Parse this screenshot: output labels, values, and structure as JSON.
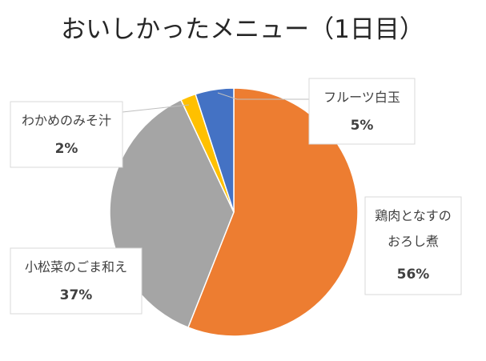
{
  "chart_data": {
    "type": "pie",
    "title": "おいしかったメニュー（1日目）",
    "categories": [
      "鶏肉となすのおろし煮",
      "小松菜のごま和え",
      "わかめのみそ汁",
      "フルーツ白玉"
    ],
    "values": [
      56,
      37,
      2,
      5
    ],
    "value_labels": [
      "56%",
      "37%",
      "2%",
      "5%"
    ],
    "colors": [
      "#ed7d31",
      "#a5a5a5",
      "#ffc000",
      "#4472c4"
    ],
    "start_angle_deg": 0,
    "direction": "clockwise",
    "legend": "none",
    "labels": [
      {
        "lines": [
          "鶏肉となすの",
          "おろし煮"
        ],
        "value": "56%"
      },
      {
        "lines": [
          "小松菜のごま和え"
        ],
        "value": "37%"
      },
      {
        "lines": [
          "わかめのみそ汁"
        ],
        "value": "2%"
      },
      {
        "lines": [
          "フルーツ白玉"
        ],
        "value": "5%"
      }
    ]
  }
}
